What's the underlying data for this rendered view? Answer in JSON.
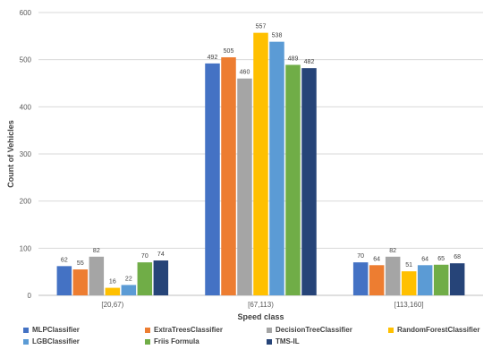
{
  "chart_data": {
    "type": "bar",
    "xlabel": "Speed class",
    "ylabel": "Count of Vehicles",
    "ylim": [
      0,
      600
    ],
    "yticks": [
      0,
      100,
      200,
      300,
      400,
      500,
      600
    ],
    "grid": true,
    "legend_position": "bottom",
    "categories": [
      "[20,67)",
      "[67,113)",
      "[113,160]"
    ],
    "series": [
      {
        "name": "MLPClassifier",
        "color": "#4472C4",
        "values": [
          62,
          492,
          70
        ]
      },
      {
        "name": "ExtraTreesClassifier",
        "color": "#ED7D31",
        "values": [
          55,
          505,
          64
        ]
      },
      {
        "name": "DecisionTreeClassifier",
        "color": "#A5A5A5",
        "values": [
          82,
          460,
          82
        ]
      },
      {
        "name": "RandomForestClassifier",
        "color": "#FFC000",
        "values": [
          16,
          557,
          51
        ]
      },
      {
        "name": "LGBClassifier",
        "color": "#5B9BD5",
        "values": [
          22,
          538,
          64
        ]
      },
      {
        "name": "Friis Formula",
        "color": "#70AD47",
        "values": [
          70,
          489,
          65
        ]
      },
      {
        "name": "TMS-IL",
        "color": "#264478",
        "values": [
          74,
          482,
          68
        ]
      }
    ]
  }
}
